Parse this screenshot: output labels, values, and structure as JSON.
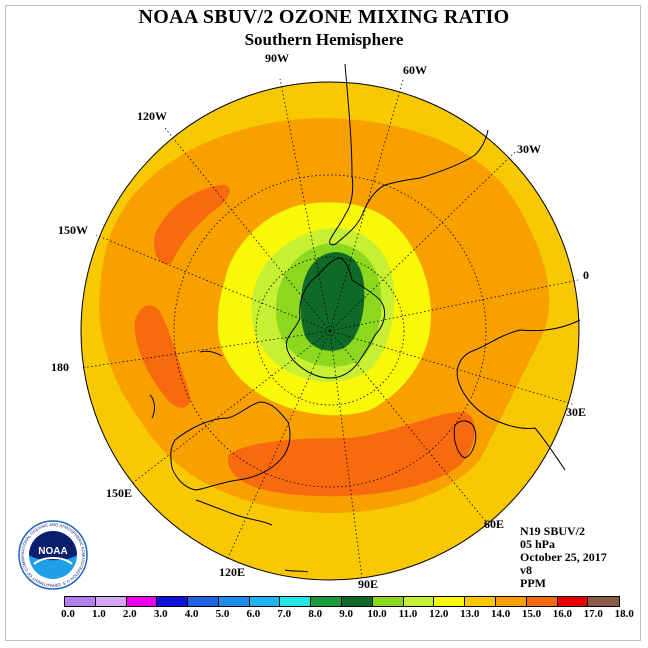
{
  "header": {
    "title": "NOAA SBUV/2 OZONE MIXING RATIO",
    "subtitle": "Southern Hemisphere"
  },
  "longitude_labels": {
    "lon_90w": "90W",
    "lon_60w": "60W",
    "lon_30w": "30W",
    "lon_0": "0",
    "lon_30e": "30E",
    "lon_60e": "60E",
    "lon_90e": "90E",
    "lon_120e": "120E",
    "lon_150e": "150E",
    "lon_180": "180",
    "lon_150w": "150W",
    "lon_120w": "120W"
  },
  "info": {
    "satellite": "N19 SBUV/2",
    "level": "05 hPa",
    "date": "October 25, 2017",
    "version": "v8",
    "units": "PPM"
  },
  "logo": {
    "text": "NOAA",
    "ring_text": "NATIONAL OCEANIC AND ATMOSPHERIC ADMINISTRATION U.S. DEPARTMENT OF COMMERCE"
  },
  "colorbar": {
    "colors": [
      "#b57ff0",
      "#d4a8f0",
      "#ee00ee",
      "#1010d8",
      "#1e64e6",
      "#1e8cf0",
      "#1eb4f0",
      "#1ee8e8",
      "#1a9a3a",
      "#0f6a2a",
      "#8cd81e",
      "#c8f032",
      "#f8f808",
      "#f8c800",
      "#f8a000",
      "#f86a10",
      "#e80000",
      "#8c5a46"
    ],
    "tick_labels": [
      "0.0",
      "1.0",
      "2.0",
      "3.0",
      "4.0",
      "5.0",
      "6.0",
      "7.0",
      "8.0",
      "9.0",
      "10.0",
      "11.0",
      "12.0",
      "13.0",
      "14.0",
      "15.0",
      "16.0",
      "17.0",
      "18.0"
    ]
  },
  "map_colors": {
    "outer": "#f8c800",
    "ring_orange": "#f8a000",
    "high_core": "#f86a10",
    "yellow": "#f8f808",
    "lime": "#c8f032",
    "green": "#8cd81e",
    "dark_green": "#0f6a2a"
  }
}
